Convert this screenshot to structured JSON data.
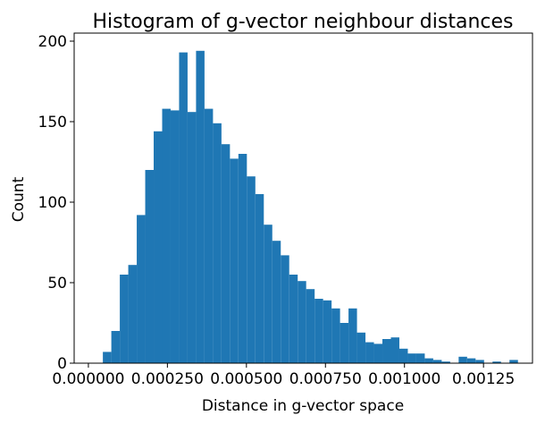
{
  "chart_data": {
    "type": "bar",
    "title": "Histogram of g-vector neighbour distances",
    "xlabel": "Distance in g-vector space",
    "ylabel": "Count",
    "xlim": [
      -4.5e-05,
      0.001405
    ],
    "ylim": [
      0,
      205
    ],
    "bar_color": "#1f77b4",
    "bin_width": 2.68e-05,
    "bin_starts": [
      1.9e-05,
      4.58e-05,
      7.26e-05,
      9.94e-05,
      0.0001262,
      0.000153,
      0.0001798,
      0.0002066,
      0.0002334,
      0.0002602,
      0.000287,
      0.0003138,
      0.0003406,
      0.0003674,
      0.0003942,
      0.000421,
      0.0004478,
      0.0004746,
      0.0005014,
      0.0005282,
      0.000555,
      0.0005818,
      0.0006086,
      0.0006354,
      0.0006622,
      0.000689,
      0.0007158,
      0.0007426,
      0.0007694,
      0.0007962,
      0.000823,
      0.0008498,
      0.0008766,
      0.0009034,
      0.0009302,
      0.000957,
      0.0009838,
      0.0010106,
      0.0010374,
      0.0010642,
      0.001091,
      0.0011178,
      0.0011446,
      0.0011714,
      0.0011982,
      0.001225,
      0.0012518,
      0.0012786,
      0.0013054,
      0.0013322
    ],
    "values": [
      0,
      7,
      20,
      55,
      61,
      92,
      120,
      144,
      158,
      157,
      193,
      156,
      194,
      158,
      149,
      136,
      127,
      130,
      116,
      105,
      86,
      76,
      67,
      55,
      51,
      46,
      40,
      39,
      34,
      25,
      34,
      19,
      13,
      12,
      15,
      16,
      9,
      6,
      6,
      3,
      2,
      1,
      0,
      4,
      3,
      2,
      0,
      1,
      0,
      2
    ],
    "x_ticks": [
      0.0,
      0.00025,
      0.0005,
      0.00075,
      0.001,
      0.00125
    ],
    "x_tick_labels": [
      "0.000000",
      "0.000250",
      "0.000500",
      "0.000750",
      "0.001000",
      "0.00125"
    ],
    "y_ticks": [
      0,
      50,
      100,
      150,
      200
    ],
    "y_tick_labels": [
      "0",
      "50",
      "100",
      "150",
      "200"
    ],
    "grid": false,
    "legend": "none"
  }
}
